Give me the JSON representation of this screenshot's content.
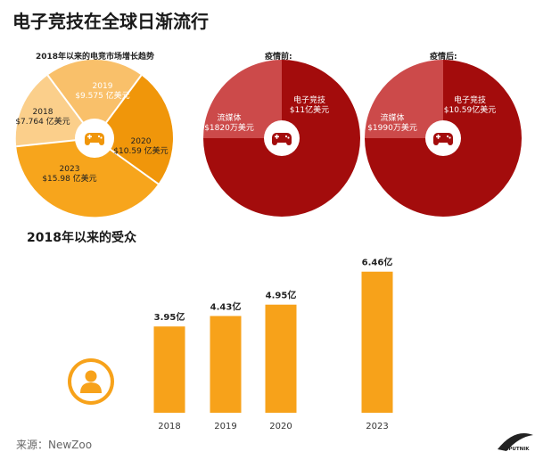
{
  "title": "电子竞技在全球日渐流行",
  "source": "来源：NewZoo",
  "brand": "SPUTNIK",
  "colors": {
    "orange": "#f7a51c",
    "orange_dark": "#f0960a",
    "orange_light": "#f9c06a",
    "peach": "#fbcf8b",
    "red_dark": "#a30c0c",
    "red_light": "#cc4a4a",
    "bar": "#f7a21a",
    "icon_white": "#ffffff"
  },
  "chart_data": [
    {
      "type": "pie",
      "title": "2018年以来的电竞市场增长趋势",
      "slices": [
        {
          "year": "2023",
          "label_line1": "2023",
          "label_line2": "$15.98 亿美元",
          "value": 15.98
        },
        {
          "year": "2018",
          "label_line1": "2018",
          "label_line2": "$7.764 亿美元",
          "value": 7.764
        },
        {
          "year": "2019",
          "label_line1": "2019",
          "label_line2": "$9.575 亿美元",
          "value": 9.575
        },
        {
          "year": "2020",
          "label_line1": "2020",
          "label_line2": "$10.59 亿美元",
          "value": 10.59
        }
      ]
    },
    {
      "type": "pie",
      "title": "疫情前:",
      "slices": [
        {
          "label_line1": "流媒体",
          "label_line2": "$1820万美元",
          "value": 0.182
        },
        {
          "label_line1": "电子竞技",
          "label_line2": "$11亿美元",
          "value": 11
        }
      ]
    },
    {
      "type": "pie",
      "title": "疫情后:",
      "slices": [
        {
          "label_line1": "流媒体",
          "label_line2": "$1990万美元",
          "value": 0.199
        },
        {
          "label_line1": "电子竞技",
          "label_line2": "$10.59亿美元",
          "value": 10.59
        }
      ]
    },
    {
      "type": "bar",
      "title": "2018年以来的受众",
      "categories": [
        "2018",
        "2019",
        "2020",
        "2023"
      ],
      "values": [
        3.95,
        4.43,
        4.95,
        6.46
      ],
      "value_labels": [
        "3.95亿",
        "4.43亿",
        "4.95亿",
        "6.46亿"
      ]
    }
  ]
}
